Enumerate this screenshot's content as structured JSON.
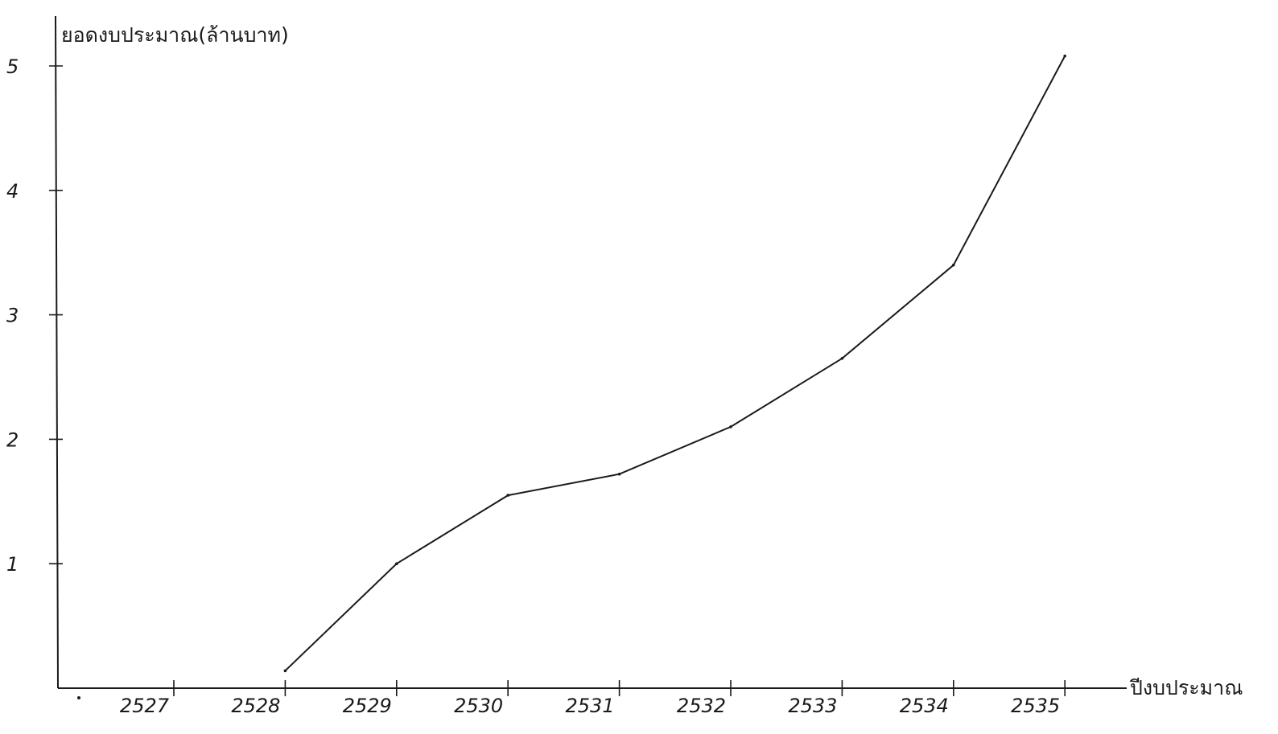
{
  "chart_data": {
    "type": "line",
    "ylabel": "ยอดงบประมาณ(ล้านบาท)",
    "xlabel": "ปีงบประมาณ",
    "ylim": [
      0,
      5
    ],
    "yticks": [
      1,
      2,
      3,
      4,
      5
    ],
    "ytick_labels": [
      "1",
      "2",
      "3",
      "4",
      "5"
    ],
    "xticks": [
      "2527",
      "2528",
      "2529",
      "2530",
      "2531",
      "2532",
      "2533",
      "2534",
      "2535"
    ],
    "grid": false,
    "series": [
      {
        "x": [
          "2528",
          "2529",
          "2530",
          "2531",
          "2532",
          "2533",
          "2534",
          "2535"
        ],
        "values": [
          0.14,
          1.0,
          1.55,
          1.72,
          2.1,
          2.65,
          3.4,
          5.08
        ]
      }
    ],
    "colors": {
      "ink": "#1a1a1a",
      "paper": "#ffffff"
    }
  }
}
